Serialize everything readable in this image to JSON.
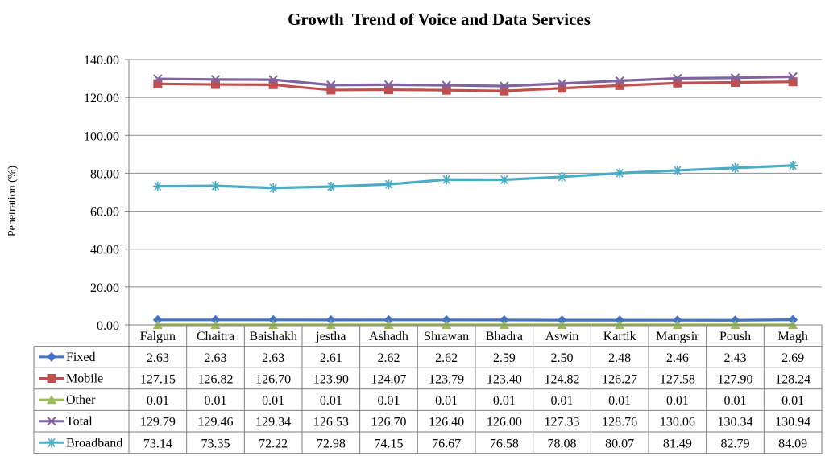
{
  "chart_data": {
    "type": "line",
    "title": "Growth  Trend of Voice and Data Services",
    "ylabel": "Penetration (%)",
    "xlabel": "",
    "ylim": [
      0,
      140
    ],
    "yticks": [
      "0.00",
      "20.00",
      "40.00",
      "60.00",
      "80.00",
      "100.00",
      "120.00",
      "140.00"
    ],
    "grid": true,
    "legend": "data-table",
    "categories": [
      "Falgun",
      "Chaitra",
      "Baishakh",
      "jestha",
      "Ashadh",
      "Shrawan",
      "Bhadra",
      "Aswin",
      "Kartik",
      "Mangsir",
      "Poush",
      "Magh"
    ],
    "series": [
      {
        "name": "Fixed",
        "color": "#4472C4",
        "marker": "diamond",
        "values": [
          2.63,
          2.63,
          2.63,
          2.61,
          2.62,
          2.62,
          2.59,
          2.5,
          2.48,
          2.46,
          2.43,
          2.69
        ],
        "labels": [
          "2.63",
          "2.63",
          "2.63",
          "2.61",
          "2.62",
          "2.62",
          "2.59",
          "2.50",
          "2.48",
          "2.46",
          "2.43",
          "2.69"
        ]
      },
      {
        "name": "Mobile",
        "color": "#C0504D",
        "marker": "square",
        "values": [
          127.15,
          126.82,
          126.7,
          123.9,
          124.07,
          123.79,
          123.4,
          124.82,
          126.27,
          127.58,
          127.9,
          128.24
        ],
        "labels": [
          "127.15",
          "126.82",
          "126.70",
          "123.90",
          "124.07",
          "123.79",
          "123.40",
          "124.82",
          "126.27",
          "127.58",
          "127.90",
          "128.24"
        ]
      },
      {
        "name": "Other",
        "color": "#9BBB59",
        "marker": "triangle",
        "values": [
          0.01,
          0.01,
          0.01,
          0.01,
          0.01,
          0.01,
          0.01,
          0.01,
          0.01,
          0.01,
          0.01,
          0.01
        ],
        "labels": [
          "0.01",
          "0.01",
          "0.01",
          "0.01",
          "0.01",
          "0.01",
          "0.01",
          "0.01",
          "0.01",
          "0.01",
          "0.01",
          "0.01"
        ]
      },
      {
        "name": "Total",
        "color": "#8064A2",
        "marker": "x",
        "values": [
          129.79,
          129.46,
          129.34,
          126.53,
          126.7,
          126.4,
          126.0,
          127.33,
          128.76,
          130.06,
          130.34,
          130.94
        ],
        "labels": [
          "129.79",
          "129.46",
          "129.34",
          "126.53",
          "126.70",
          "126.40",
          "126.00",
          "127.33",
          "128.76",
          "130.06",
          "130.34",
          "130.94"
        ]
      },
      {
        "name": "Broadband",
        "color": "#4BACC6",
        "marker": "star",
        "values": [
          73.14,
          73.35,
          72.22,
          72.98,
          74.15,
          76.67,
          76.58,
          78.08,
          80.07,
          81.49,
          82.79,
          84.09
        ],
        "labels": [
          "73.14",
          "73.35",
          "72.22",
          "72.98",
          "74.15",
          "76.67",
          "76.58",
          "78.08",
          "80.07",
          "81.49",
          "82.79",
          "84.09"
        ]
      }
    ]
  }
}
